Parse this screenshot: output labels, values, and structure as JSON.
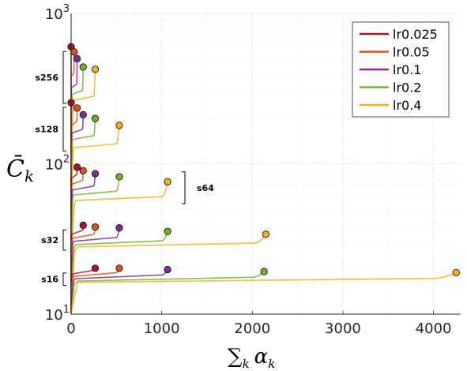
{
  "chart_data": {
    "type": "line",
    "xlabel": "∑k αk",
    "xlabel_main": "∑",
    "xlabel_sub": "k",
    "xlabel_var": "α",
    "xlabel_var_sub": "k",
    "ylabel": "C̄k",
    "ylabel_main": "C̄",
    "ylabel_sub": "k",
    "ylim": [
      10,
      1000
    ],
    "yscale": "log",
    "xlim": [
      0,
      4300
    ],
    "xticks": [
      0,
      1000,
      2000,
      3000,
      4000
    ],
    "ytick_base": "10",
    "yticks": [
      {
        "value": 10,
        "exp": "1"
      },
      {
        "value": 100,
        "exp": "2"
      },
      {
        "value": 1000,
        "exp": "3"
      }
    ],
    "grid": true,
    "legend_position": "top-right",
    "series": [
      {
        "name": "lr0.025",
        "color": "#a3172b"
      },
      {
        "name": "lr0.05",
        "color": "#d9541e"
      },
      {
        "name": "lr0.1",
        "color": "#7e2f8e"
      },
      {
        "name": "lr0.2",
        "color": "#77ac30"
      },
      {
        "name": "lr0.4",
        "color": "#edb120"
      }
    ],
    "groups": [
      {
        "label": "s256",
        "curves": [
          {
            "series": 0,
            "end": [
              0,
              600
            ],
            "plateau": 470,
            "rise_frac": 0.03
          },
          {
            "series": 1,
            "end": [
              33,
              555
            ],
            "plateau": 380,
            "rise_frac": 0.05
          },
          {
            "series": 2,
            "end": [
              66,
              500
            ],
            "plateau": 320,
            "rise_frac": 0.07
          },
          {
            "series": 3,
            "end": [
              133,
              440
            ],
            "plateau": 290,
            "rise_frac": 0.1
          },
          {
            "series": 4,
            "end": [
              266,
              425
            ],
            "plateau": 265,
            "rise_frac": 0.12
          }
        ]
      },
      {
        "label": "s128",
        "curves": [
          {
            "series": 0,
            "end": [
              0,
              255
            ],
            "plateau": 200,
            "rise_frac": 0.04
          },
          {
            "series": 1,
            "end": [
              66,
              235
            ],
            "plateau": 180,
            "rise_frac": 0.05
          },
          {
            "series": 2,
            "end": [
              133,
              212
            ],
            "plateau": 160,
            "rise_frac": 0.07
          },
          {
            "series": 3,
            "end": [
              266,
              200
            ],
            "plateau": 145,
            "rise_frac": 0.06
          },
          {
            "series": 4,
            "end": [
              532,
              180
            ],
            "plateau": 128,
            "rise_frac": 0.06
          }
        ]
      },
      {
        "label": "s64",
        "curves": [
          {
            "series": 0,
            "end": [
              66,
              95
            ],
            "plateau": 80,
            "rise_frac": 0.05
          },
          {
            "series": 1,
            "end": [
              133,
              90
            ],
            "plateau": 73,
            "rise_frac": 0.06
          },
          {
            "series": 2,
            "end": [
              266,
              86
            ],
            "plateau": 67,
            "rise_frac": 0.06
          },
          {
            "series": 3,
            "end": [
              532,
              82
            ],
            "plateau": 62,
            "rise_frac": 0.05
          },
          {
            "series": 4,
            "end": [
              1065,
              76
            ],
            "plateau": 57,
            "rise_frac": 0.05
          }
        ]
      },
      {
        "label": "s32",
        "curves": [
          {
            "series": 0,
            "end": [
              133,
              39
            ],
            "plateau": 34,
            "rise_frac": 0.05
          },
          {
            "series": 1,
            "end": [
              266,
              38
            ],
            "plateau": 32,
            "rise_frac": 0.06
          },
          {
            "series": 2,
            "end": [
              532,
              37.5
            ],
            "plateau": 30.5,
            "rise_frac": 0.05
          },
          {
            "series": 3,
            "end": [
              1065,
              35.5
            ],
            "plateau": 29,
            "rise_frac": 0.05
          },
          {
            "series": 4,
            "end": [
              2150,
              34
            ],
            "plateau": 28,
            "rise_frac": 0.03
          }
        ]
      },
      {
        "label": "s16",
        "curves": [
          {
            "series": 0,
            "end": [
              266,
              20.2
            ],
            "plateau": 18.5,
            "rise_frac": 0.06
          },
          {
            "series": 1,
            "end": [
              532,
              20.2
            ],
            "plateau": 17.8,
            "rise_frac": 0.05
          },
          {
            "series": 2,
            "end": [
              1065,
              19.8
            ],
            "plateau": 17.2,
            "rise_frac": 0.04
          },
          {
            "series": 3,
            "end": [
              2130,
              19.2
            ],
            "plateau": 16.6,
            "rise_frac": 0.03
          },
          {
            "series": 4,
            "end": [
              4250,
              18.9
            ],
            "plateau": 16.3,
            "rise_frac": 0.02
          }
        ]
      }
    ]
  }
}
